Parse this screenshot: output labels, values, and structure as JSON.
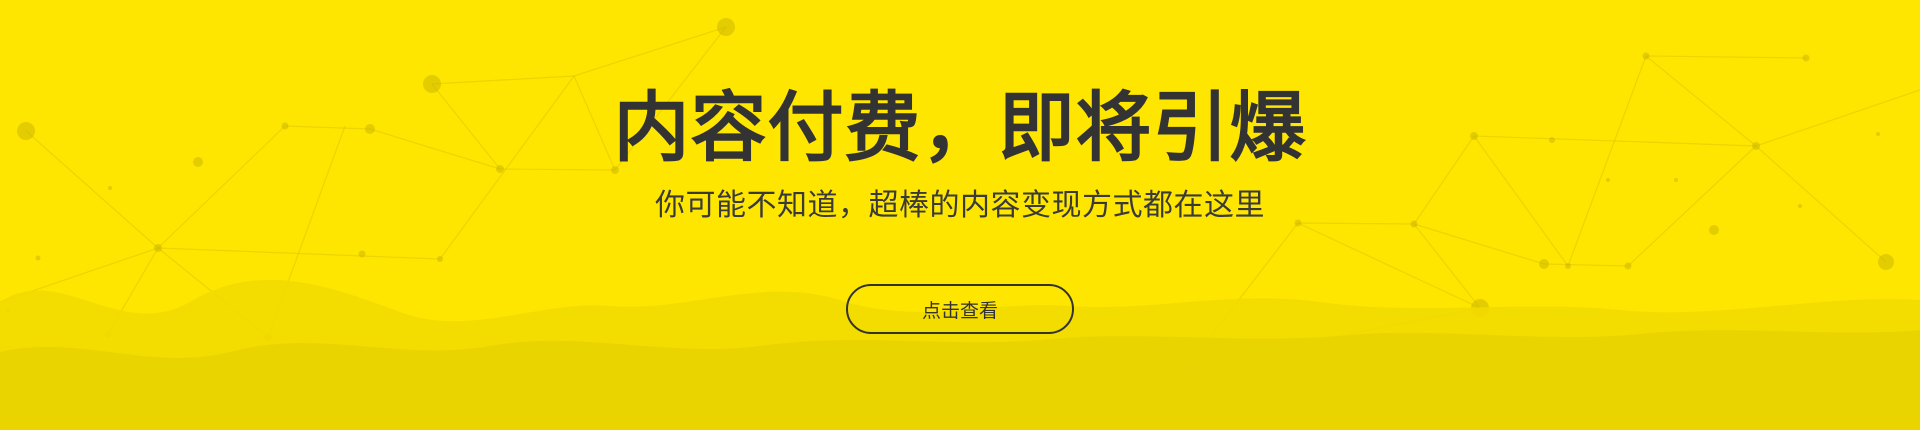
{
  "banner": {
    "title": "内容付费，即将引爆",
    "subtitle": "你可能不知道，超棒的内容变现方式都在这里",
    "cta_label": "点击查看",
    "colors": {
      "background": "#FFE600",
      "wave_light": "#F2DA00",
      "wave_dark": "#E8D300",
      "text": "#333333"
    },
    "icons": [
      "network-lines-decoration",
      "wave-decoration"
    ]
  }
}
